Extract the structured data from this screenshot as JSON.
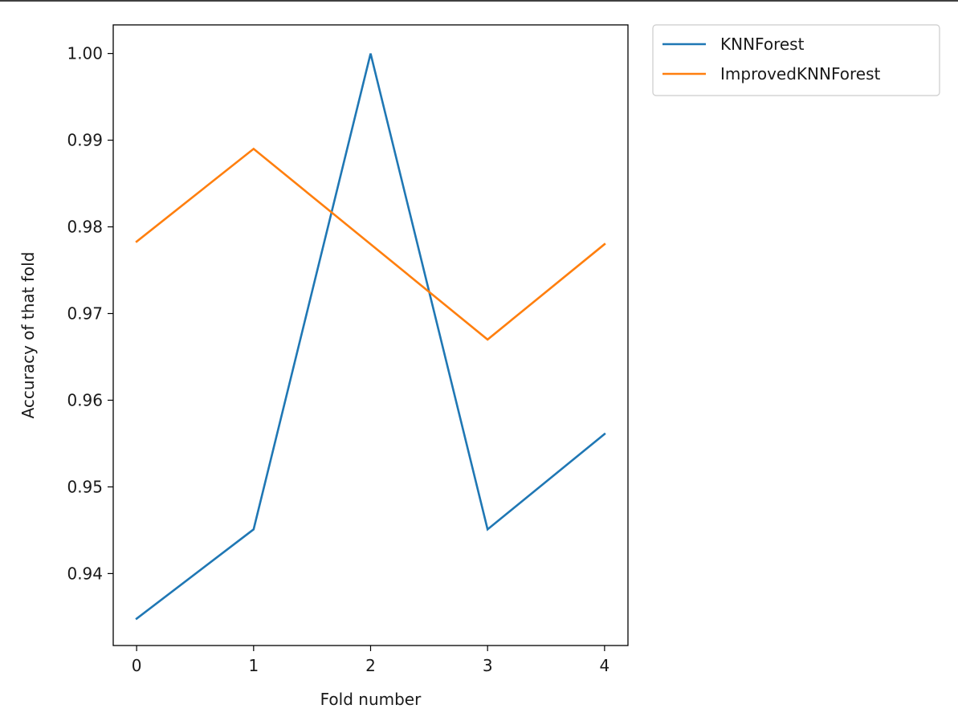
{
  "chart_data": {
    "type": "line",
    "title": "",
    "xlabel": "Fold number",
    "ylabel": "Accuracy of that fold",
    "x": [
      0,
      1,
      2,
      3,
      4
    ],
    "x_tick_labels": [
      "0",
      "1",
      "2",
      "3",
      "4"
    ],
    "y_ticks": [
      0.94,
      0.95,
      0.96,
      0.97,
      0.98,
      0.99,
      1.0
    ],
    "y_tick_labels": [
      "0.94",
      "0.95",
      "0.96",
      "0.97",
      "0.98",
      "0.99",
      "1.00"
    ],
    "xlim": [
      -0.2,
      4.2
    ],
    "ylim": [
      0.9317,
      1.0033
    ],
    "grid": false,
    "legend_position": "outside upper-right",
    "series": [
      {
        "name": "KNNForest",
        "color": "#1f77b4",
        "values": [
          0.9348,
          0.9451,
          1.0,
          0.9451,
          0.9561
        ]
      },
      {
        "name": "ImprovedKNNForest",
        "color": "#ff7f0e",
        "values": [
          0.9783,
          0.989,
          0.978,
          0.967,
          0.978
        ]
      }
    ]
  }
}
